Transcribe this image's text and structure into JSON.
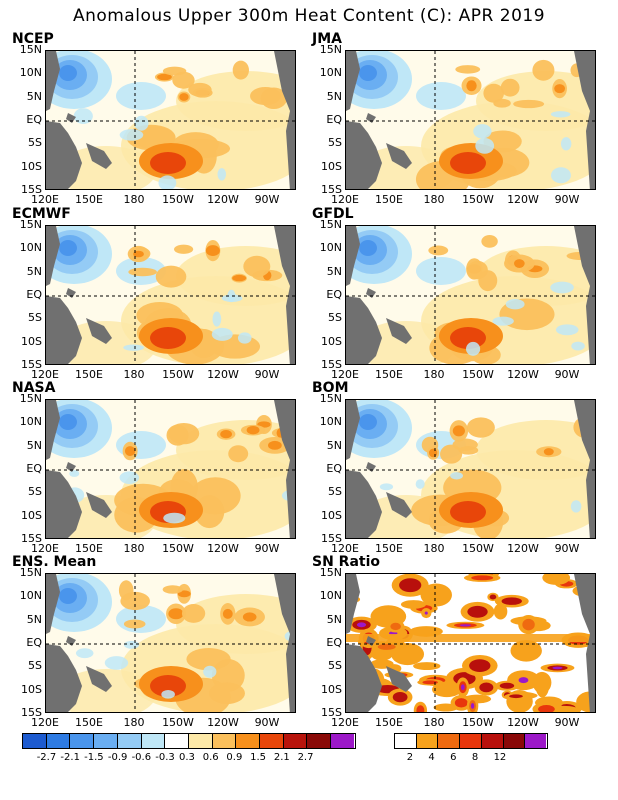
{
  "title": "Anomalous Upper 300m Heat Content (C): APR 2019",
  "panels": [
    {
      "name": "NCEP",
      "kind": "anom"
    },
    {
      "name": "JMA",
      "kind": "anom"
    },
    {
      "name": "ECMWF",
      "kind": "anom"
    },
    {
      "name": "GFDL",
      "kind": "anom"
    },
    {
      "name": "NASA",
      "kind": "anom"
    },
    {
      "name": "BOM",
      "kind": "anom"
    },
    {
      "name": "ENS. Mean",
      "kind": "anom"
    },
    {
      "name": "SN Ratio",
      "kind": "sn"
    }
  ],
  "lat_labels": [
    "15N",
    "10N",
    "5N",
    "EQ",
    "5S",
    "10S",
    "15S"
  ],
  "lon_labels": [
    "120E",
    "150E",
    "180",
    "150W",
    "120W",
    "90W"
  ],
  "colors": {
    "anom": [
      "#1d5bd0",
      "#2e7be3",
      "#4a95ec",
      "#6aaef2",
      "#94cbf5",
      "#bfe7f7",
      "#ffffff",
      "#fde9a8",
      "#fbc05c",
      "#f7901c",
      "#e8460a",
      "#b8140c",
      "#8a0a08",
      "#9c19c8"
    ],
    "sn": [
      "#ffffff",
      "#f7a21c",
      "#ef6a10",
      "#e8360c",
      "#b8100c",
      "#8a0808",
      "#9c19c8"
    ],
    "land": "#707070"
  },
  "anom_colorbar_labels": [
    "-2.7",
    "-2.1",
    "-1.5",
    "-0.9",
    "-0.6",
    "-0.3",
    "0.3",
    "0.6",
    "0.9",
    "1.5",
    "2.1",
    "2.7"
  ],
  "sn_colorbar_labels": [
    "2",
    "4",
    "6",
    "8",
    "12"
  ]
}
